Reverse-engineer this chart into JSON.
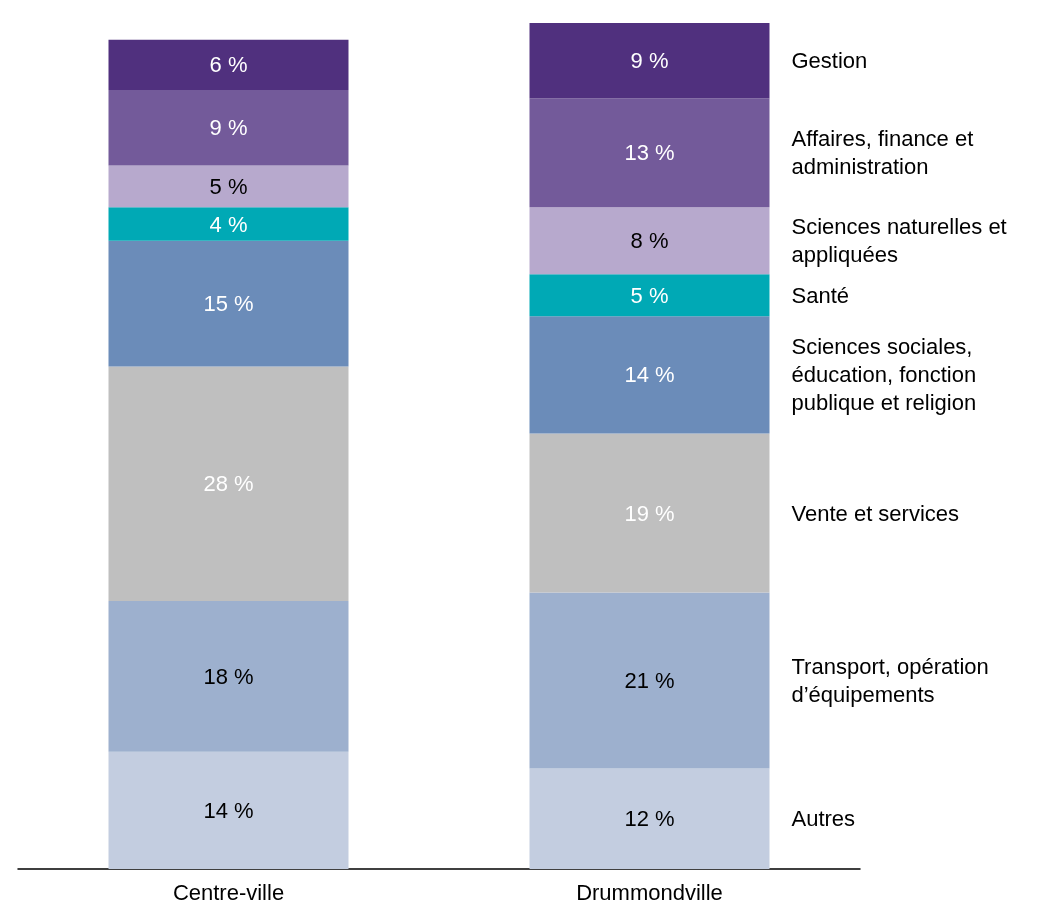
{
  "chart_data": {
    "type": "bar",
    "stacked": true,
    "categories": [
      "Centre-ville",
      "Drummondville"
    ],
    "series": [
      {
        "name": "Autres",
        "color": "#c3cde0",
        "values": [
          14,
          12
        ],
        "value_labels": [
          "14 %",
          "12 %"
        ]
      },
      {
        "name": "Transport, opération d’équipements",
        "color": "#9db0ce",
        "values": [
          18,
          21
        ],
        "value_labels": [
          "18 %",
          "21 %"
        ]
      },
      {
        "name": "Vente et services",
        "color": "#bfbfbf",
        "values": [
          28,
          19
        ],
        "value_labels": [
          "28 %",
          "19 %"
        ]
      },
      {
        "name": "Sciences sociales, éducation, fonction publique et religion",
        "color": "#6b8cb9",
        "values": [
          15,
          14
        ],
        "value_labels": [
          "15 %",
          "14 %"
        ]
      },
      {
        "name": "Santé",
        "color": "#00a9b5",
        "values": [
          4,
          5
        ],
        "value_labels": [
          "4 %",
          "5 %"
        ]
      },
      {
        "name": "Sciences naturelles et appliquées",
        "color": "#b7a9cd",
        "values": [
          5,
          8
        ],
        "value_labels": [
          "5 %",
          "8 %"
        ]
      },
      {
        "name": "Affaires, finance et administration",
        "color": "#735a9a",
        "values": [
          9,
          13
        ],
        "value_labels": [
          "9 %",
          "13 %"
        ]
      },
      {
        "name": "Gestion",
        "color": "#50307e",
        "values": [
          6,
          9
        ],
        "value_labels": [
          "6 %",
          "9 %"
        ]
      }
    ],
    "legend": false,
    "grid": false
  }
}
